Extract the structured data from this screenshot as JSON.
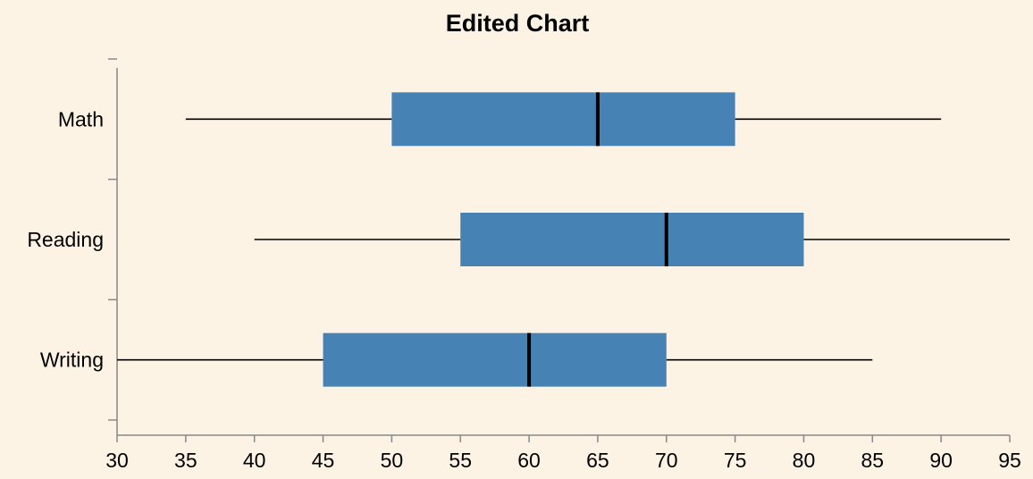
{
  "chart_data": {
    "type": "boxplot",
    "orientation": "horizontal",
    "title": "Edited Chart",
    "xlabel": "",
    "ylabel": "",
    "xlim": [
      30,
      95
    ],
    "x_ticks": [
      30,
      35,
      40,
      45,
      50,
      55,
      60,
      65,
      70,
      75,
      80,
      85,
      90,
      95
    ],
    "categories": [
      "Math",
      "Reading",
      "Writing"
    ],
    "series": [
      {
        "category": "Math",
        "min": 35,
        "q1": 50,
        "median": 65,
        "q3": 75,
        "max": 90
      },
      {
        "category": "Reading",
        "min": 40,
        "q1": 55,
        "median": 70,
        "q3": 80,
        "max": 95
      },
      {
        "category": "Writing",
        "min": 30,
        "q1": 45,
        "median": 60,
        "q3": 70,
        "max": 85
      }
    ],
    "box_color": "#4682b4",
    "grid": false,
    "legend": "none"
  },
  "colors": {
    "background": "#fdf3e5",
    "box": "#4682b4",
    "axis": "#888888"
  }
}
